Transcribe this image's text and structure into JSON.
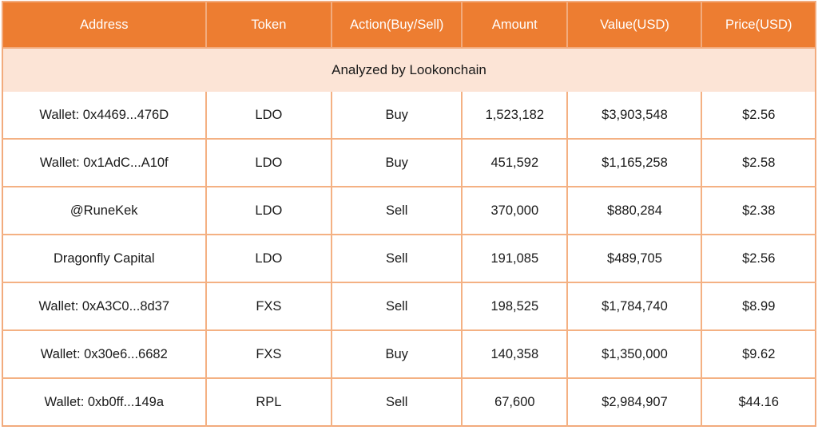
{
  "table": {
    "columns": [
      {
        "key": "address",
        "label": "Address"
      },
      {
        "key": "token",
        "label": "Token"
      },
      {
        "key": "action",
        "label": "Action(Buy/Sell)"
      },
      {
        "key": "amount",
        "label": "Amount"
      },
      {
        "key": "value",
        "label": "Value(USD)"
      },
      {
        "key": "price",
        "label": "Price(USD)"
      }
    ],
    "banner": {
      "text": "Analyzed by Lookonchain"
    },
    "rows": [
      {
        "address": "Wallet: 0x4469...476D",
        "token": "LDO",
        "action": "Buy",
        "amount": "1,523,182",
        "value": "$3,903,548",
        "price": "$2.56"
      },
      {
        "address": "Wallet: 0x1AdC...A10f",
        "token": "LDO",
        "action": "Buy",
        "amount": "451,592",
        "value": "$1,165,258",
        "price": "$2.58"
      },
      {
        "address": "@RuneKek",
        "token": "LDO",
        "action": "Sell",
        "amount": "370,000",
        "value": "$880,284",
        "price": "$2.38"
      },
      {
        "address": "Dragonfly Capital",
        "token": "LDO",
        "action": "Sell",
        "amount": "191,085",
        "value": "$489,705",
        "price": "$2.56"
      },
      {
        "address": "Wallet: 0xA3C0...8d37",
        "token": "FXS",
        "action": "Sell",
        "amount": "198,525",
        "value": "$1,784,740",
        "price": "$8.99"
      },
      {
        "address": "Wallet: 0x30e6...6682",
        "token": "FXS",
        "action": "Buy",
        "amount": "140,358",
        "value": "$1,350,000",
        "price": "$9.62"
      },
      {
        "address": "Wallet: 0xb0ff...149a",
        "token": "RPL",
        "action": "Sell",
        "amount": "67,600",
        "value": "$2,984,907",
        "price": "$44.16"
      }
    ],
    "colors": {
      "header_bg": "#ed7d31",
      "header_text": "#ffffff",
      "banner_bg": "#fce4d6",
      "border": "#f4b183",
      "body_text": "#1a1a1a"
    }
  }
}
